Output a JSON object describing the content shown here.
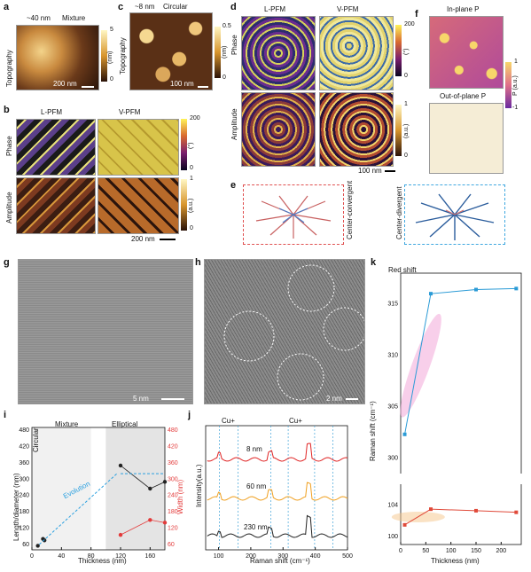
{
  "panels": {
    "a": {
      "label": "a",
      "title": "~40 nm",
      "subtitle": "Mixture",
      "ylabel": "Topography",
      "scale": "200 nm",
      "cbar_max": "5",
      "cbar_min": "0",
      "cbar_unit": "(nm)"
    },
    "b": {
      "label": "b",
      "col1": "L-PFM",
      "col2": "V-PFM",
      "row1": "Phase",
      "row2": "Amplitude",
      "phase_max": "200",
      "phase_min": "0",
      "phase_unit": "(°)",
      "amp_max": "1",
      "amp_min": "0",
      "amp_unit": "(a.u.)",
      "scale": "200 nm"
    },
    "c": {
      "label": "c",
      "title": "~8 nm",
      "subtitle": "Circular",
      "ylabel": "Topography",
      "scale": "100 nm",
      "cbar_max": "0.5",
      "cbar_min": "0",
      "cbar_unit": "(nm)"
    },
    "d": {
      "label": "d",
      "col1": "L-PFM",
      "col2": "V-PFM",
      "row1": "Phase",
      "row2": "Amplitude",
      "phase_max": "200",
      "phase_min": "0",
      "phase_unit": "(°)",
      "amp_max": "1",
      "amp_min": "0",
      "amp_unit": "(a.u.)",
      "scale": "100 nm"
    },
    "e": {
      "label": "e",
      "left": "Center-convergent",
      "right": "Center-divergent"
    },
    "f": {
      "label": "f",
      "top": "In-plane P",
      "bottom": "Out-of-plane P",
      "cbar_max": "1",
      "cbar_min": "-1",
      "cbar_unit": "P (a.u.)"
    },
    "g": {
      "label": "g",
      "scale": "5 nm"
    },
    "h": {
      "label": "h",
      "scale": "2 nm"
    },
    "i": {
      "label": "i",
      "circular": "Circular",
      "mixture": "Mixture",
      "elliptical": "Elliptical",
      "evolution": "Evolution",
      "xlabel": "Thickness (nm)",
      "ylabel_left": "Length/diameter (nm)",
      "ylabel_right": "Width (nm)"
    },
    "j": {
      "label": "j",
      "xlabel": "Raman shift (cm⁻¹)",
      "ylabel": "Intensity(a.u.)",
      "cu1": "Cu+",
      "cu2": "Cu+",
      "t8": "8 nm",
      "t60": "60 nm",
      "t230": "230 nm"
    },
    "k": {
      "label": "k",
      "note": "Red shift",
      "xlabel": "Thickness (nm)",
      "ylabel": "Raman shift (cm⁻¹)"
    }
  },
  "chart_data": [
    {
      "type": "scatter",
      "panel": "i",
      "x": {
        "ticks": [
          "0",
          "40",
          "80",
          "120",
          "160"
        ],
        "lim": [
          0,
          180
        ]
      },
      "y_left": {
        "ticks": [
          "60",
          "120",
          "180",
          "240",
          "300",
          "360",
          "420",
          "480"
        ],
        "lim": [
          40,
          490
        ]
      },
      "y_right": {
        "ticks": [
          "60",
          "120",
          "180",
          "240",
          "300",
          "360",
          "420",
          "480"
        ],
        "lim": [
          40,
          490
        ]
      },
      "series": [
        {
          "color": "#222222",
          "axis": "left",
          "points": [
            [
              8,
              55
            ],
            [
              15,
              80
            ],
            [
              17,
              75
            ],
            [
              120,
              350
            ],
            [
              160,
              265
            ],
            [
              180,
              290
            ]
          ]
        },
        {
          "color": "#e33a3a",
          "axis": "right",
          "points": [
            [
              120,
              95
            ],
            [
              160,
              150
            ],
            [
              180,
              140
            ]
          ]
        }
      ]
    },
    {
      "type": "line",
      "panel": "j",
      "x": {
        "ticks": [
          "100",
          "200",
          "300",
          "400",
          "500"
        ],
        "lim": [
          60,
          500
        ]
      },
      "series": [
        {
          "name": "8 nm",
          "color": "#e02525"
        },
        {
          "name": "60 nm",
          "color": "#f0a020"
        },
        {
          "name": "230 nm",
          "color": "#222222"
        }
      ],
      "dashed_lines": [
        103,
        160,
        262,
        316,
        398,
        455
      ]
    },
    {
      "type": "line",
      "panel": "k",
      "x": {
        "ticks": [
          "0",
          "50",
          "100",
          "150",
          "200"
        ],
        "lim": [
          0,
          240
        ]
      },
      "y_top": {
        "ticks": [
          "300",
          "305",
          "310",
          "315"
        ],
        "lim": [
          299,
          318
        ]
      },
      "y_bottom": {
        "ticks": [
          "100",
          "104"
        ],
        "lim": [
          99,
          106
        ]
      },
      "series": [
        {
          "color": "#2b9bd6",
          "points": [
            [
              8,
              302.3
            ],
            [
              60,
              316.0
            ],
            [
              150,
              316.4
            ],
            [
              230,
              316.5
            ]
          ]
        },
        {
          "color": "#e04a3a",
          "points": [
            [
              8,
              101.5
            ],
            [
              60,
              103.5
            ],
            [
              150,
              103.3
            ],
            [
              230,
              103.1
            ]
          ]
        }
      ]
    }
  ]
}
